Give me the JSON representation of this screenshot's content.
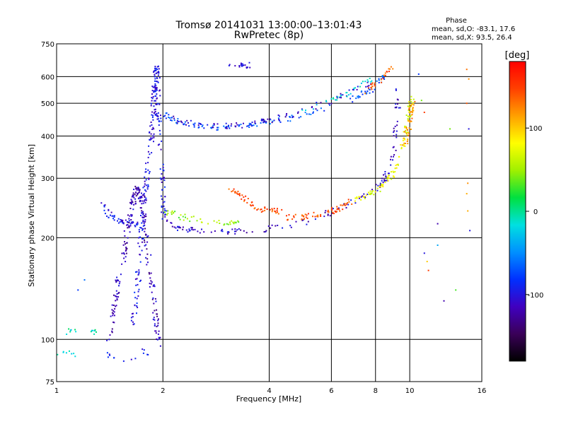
{
  "chart_data": {
    "type": "scatter",
    "title": "Tromsø 20141031 13:00:00–13:01:43",
    "subtitle": "RwPretec (8p)",
    "xlabel": "Frequency [MHz]",
    "ylabel": "Stationary phase Virtual Height [km]",
    "x_scale": "log",
    "y_scale": "log",
    "xlim": [
      1,
      16
    ],
    "ylim": [
      75,
      750
    ],
    "xticks": [
      1,
      2,
      4,
      6,
      8,
      10,
      16
    ],
    "yticks": [
      75,
      100,
      200,
      300,
      400,
      500,
      600,
      750
    ],
    "xgrid": [
      2,
      4,
      6,
      8,
      10
    ],
    "ygrid": [
      100,
      200,
      300,
      400,
      500,
      600
    ],
    "grid": true,
    "stats": {
      "title": "Phase",
      "line_o": "mean, sd,O: -83.1, 17.6",
      "line_x": "mean, sd,X:  93.5, 26.4"
    },
    "colorbar": {
      "label": "[deg]",
      "range": [
        -180,
        180
      ],
      "ticks": [
        100,
        0,
        -100
      ],
      "colors": [
        "#000000",
        "#3a0058",
        "#4000c0",
        "#0030ff",
        "#0090ff",
        "#00e0e0",
        "#00e040",
        "#a0f000",
        "#ffff00",
        "#ffa000",
        "#ff4000",
        "#ff0000"
      ]
    },
    "traces": [
      {
        "phase": -100,
        "count": 260,
        "points": [
          [
            1.65,
            110
          ],
          [
            1.7,
            150
          ],
          [
            1.75,
            220
          ],
          [
            1.8,
            300
          ],
          [
            1.85,
            380
          ],
          [
            1.88,
            470
          ],
          [
            1.9,
            560
          ],
          [
            1.92,
            640
          ],
          [
            1.95,
            450
          ],
          [
            2.0,
            300
          ],
          [
            2.02,
            220
          ]
        ]
      },
      {
        "phase": -115,
        "count": 220,
        "points": [
          [
            1.4,
            95
          ],
          [
            1.45,
            120
          ],
          [
            1.5,
            150
          ],
          [
            1.55,
            180
          ],
          [
            1.6,
            220
          ],
          [
            1.65,
            260
          ],
          [
            1.7,
            280
          ],
          [
            1.75,
            260
          ],
          [
            1.8,
            200
          ],
          [
            1.85,
            150
          ],
          [
            1.9,
            120
          ],
          [
            1.95,
            95
          ]
        ]
      },
      {
        "phase": -110,
        "count": 140,
        "points": [
          [
            2.02,
            230
          ],
          [
            2.2,
            215
          ],
          [
            2.5,
            208
          ],
          [
            3,
            208
          ],
          [
            3.5,
            210
          ],
          [
            4,
            213
          ],
          [
            5,
            222
          ],
          [
            6,
            238
          ],
          [
            7,
            258
          ],
          [
            8,
            280
          ],
          [
            8.5,
            300
          ],
          [
            9,
            360
          ],
          [
            9.2,
            440
          ],
          [
            9.3,
            560
          ]
        ]
      },
      {
        "phase": -70,
        "count": 120,
        "points": [
          [
            2.02,
            470
          ],
          [
            2.2,
            440
          ],
          [
            2.6,
            425
          ],
          [
            3,
            425
          ],
          [
            3.5,
            430
          ],
          [
            4,
            440
          ],
          [
            5,
            460
          ],
          [
            6,
            490
          ],
          [
            7,
            520
          ],
          [
            8,
            560
          ],
          [
            8.6,
            620
          ]
        ]
      },
      {
        "phase": -108,
        "count": 90,
        "points": [
          [
            2.02,
            455
          ],
          [
            2.5,
            430
          ],
          [
            3,
            428
          ],
          [
            3.5,
            432
          ],
          [
            4,
            445
          ],
          [
            5,
            475
          ],
          [
            6,
            510
          ],
          [
            7,
            550
          ],
          [
            8,
            580
          ]
        ]
      },
      {
        "phase": -100,
        "count": 50,
        "points": [
          [
            1.35,
            250
          ],
          [
            1.4,
            235
          ],
          [
            1.5,
            225
          ],
          [
            1.6,
            220
          ],
          [
            1.7,
            220
          ]
        ]
      },
      {
        "phase": 45,
        "count": 45,
        "points": [
          [
            2.02,
            240
          ],
          [
            2.2,
            232
          ],
          [
            2.5,
            225
          ],
          [
            3,
            222
          ],
          [
            3.3,
            222
          ]
        ]
      },
      {
        "phase": 145,
        "count": 55,
        "points": [
          [
            3.1,
            280
          ],
          [
            3.4,
            260
          ],
          [
            3.7,
            245
          ],
          [
            4,
            240
          ],
          [
            4.3,
            240
          ]
        ]
      },
      {
        "phase": 145,
        "count": 60,
        "points": [
          [
            4.5,
            230
          ],
          [
            5,
            230
          ],
          [
            5.5,
            235
          ],
          [
            6,
            240
          ],
          [
            6.5,
            248
          ],
          [
            7,
            258
          ]
        ]
      },
      {
        "phase": 75,
        "count": 100,
        "points": [
          [
            7,
            260
          ],
          [
            7.5,
            265
          ],
          [
            8,
            275
          ],
          [
            8.5,
            290
          ],
          [
            9,
            310
          ],
          [
            9.3,
            330
          ],
          [
            9.6,
            380
          ],
          [
            9.8,
            430
          ],
          [
            10,
            470
          ],
          [
            10.1,
            520
          ]
        ]
      },
      {
        "phase": 120,
        "count": 40,
        "points": [
          [
            9.7,
            380
          ],
          [
            9.9,
            420
          ],
          [
            10.1,
            470
          ],
          [
            10.2,
            500
          ]
        ]
      },
      {
        "phase": 140,
        "count": 25,
        "points": [
          [
            7.5,
            540
          ],
          [
            8,
            570
          ],
          [
            8.5,
            610
          ],
          [
            9,
            640
          ]
        ]
      },
      {
        "phase": -20,
        "count": 30,
        "points": [
          [
            5,
            480
          ],
          [
            6,
            510
          ],
          [
            7,
            550
          ],
          [
            7.8,
            590
          ]
        ]
      },
      {
        "phase": -100,
        "count": 18,
        "points": [
          [
            3,
            640
          ],
          [
            3.3,
            645
          ],
          [
            3.6,
            650
          ]
        ]
      },
      {
        "phase": -10,
        "count": 14,
        "points": [
          [
            1.05,
            105
          ],
          [
            1.15,
            107
          ],
          [
            1.25,
            106
          ],
          [
            1.3,
            104
          ]
        ]
      },
      {
        "phase": -10,
        "count": 8,
        "points": [
          [
            1.0,
            92
          ],
          [
            1.05,
            91
          ],
          [
            1.1,
            90
          ],
          [
            1.15,
            91
          ]
        ]
      },
      {
        "phase": -100,
        "count": 14,
        "points": [
          [
            1.4,
            90
          ],
          [
            1.5,
            88
          ],
          [
            1.6,
            86
          ],
          [
            1.75,
            92
          ],
          [
            1.85,
            90
          ]
        ]
      }
    ],
    "scatter_points": [
      {
        "x": 11,
        "y": 180,
        "phase": -100
      },
      {
        "x": 11.2,
        "y": 170,
        "phase": 100
      },
      {
        "x": 11.3,
        "y": 160,
        "phase": 150
      },
      {
        "x": 12,
        "y": 190,
        "phase": -40
      },
      {
        "x": 12.5,
        "y": 130,
        "phase": -120
      },
      {
        "x": 12,
        "y": 220,
        "phase": -120
      },
      {
        "x": 13,
        "y": 420,
        "phase": 40
      },
      {
        "x": 13.5,
        "y": 140,
        "phase": 30
      },
      {
        "x": 14.5,
        "y": 500,
        "phase": 140
      },
      {
        "x": 14.5,
        "y": 630,
        "phase": 130
      },
      {
        "x": 14.7,
        "y": 590,
        "phase": 120
      },
      {
        "x": 14.6,
        "y": 290,
        "phase": 120
      },
      {
        "x": 14.6,
        "y": 240,
        "phase": 110
      },
      {
        "x": 14.8,
        "y": 210,
        "phase": -100
      },
      {
        "x": 14.7,
        "y": 420,
        "phase": -100
      },
      {
        "x": 14.5,
        "y": 270,
        "phase": 110
      },
      {
        "x": 10.6,
        "y": 610,
        "phase": -80
      },
      {
        "x": 10.8,
        "y": 510,
        "phase": 40
      },
      {
        "x": 11,
        "y": 470,
        "phase": 150
      },
      {
        "x": 1.15,
        "y": 140,
        "phase": -80
      },
      {
        "x": 1.2,
        "y": 150,
        "phase": -60
      }
    ]
  }
}
